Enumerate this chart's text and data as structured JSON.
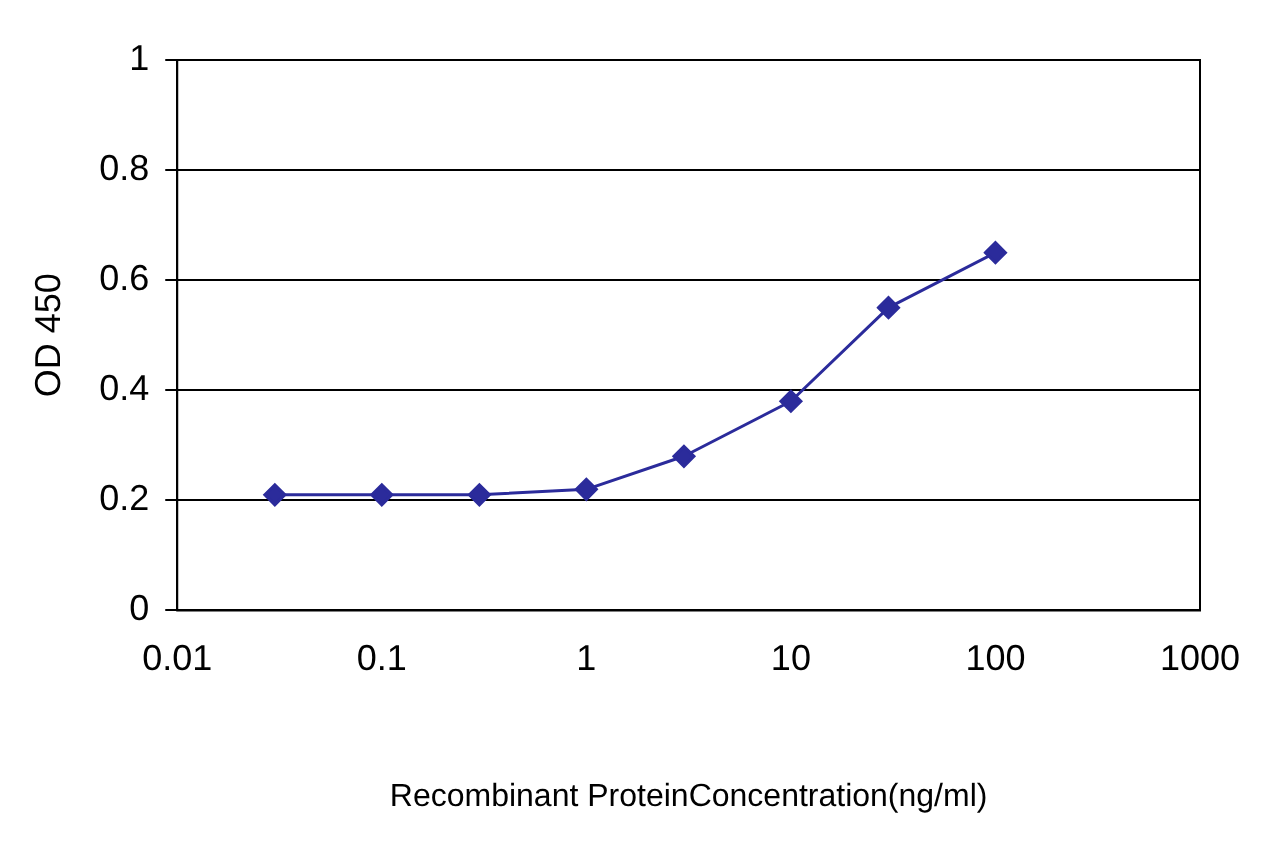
{
  "chart_data": {
    "type": "line",
    "xlabel": "Recombinant ProteinConcentration(ng/ml)",
    "ylabel": "OD 450",
    "x": [
      0.03,
      0.1,
      0.3,
      1,
      3,
      10,
      30,
      100
    ],
    "series": [
      {
        "color": "#2b2b9b",
        "values": [
          0.21,
          0.21,
          0.21,
          0.22,
          0.28,
          0.38,
          0.55,
          0.65
        ]
      }
    ],
    "log": "x",
    "xlim": [
      0.01,
      1000
    ],
    "xticks": [
      0.01,
      0.1,
      1,
      10,
      100,
      1000
    ],
    "ylim": [
      0,
      1
    ],
    "yticks": [
      0,
      0.2,
      0.4,
      0.6,
      0.8,
      1
    ],
    "grid": "y",
    "legend": false,
    "marker": "diamond",
    "line_style": "solid"
  }
}
